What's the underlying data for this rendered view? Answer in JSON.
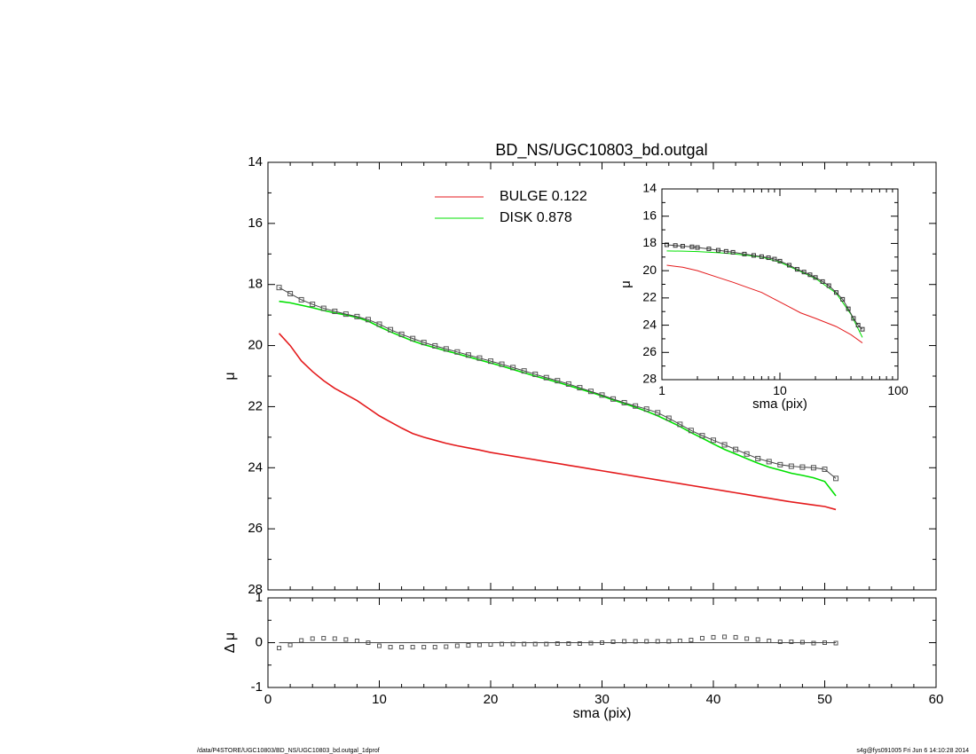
{
  "title": "BD_NS/UGC10803_bd.outgal",
  "legend": [
    {
      "label": "BULGE  0.122",
      "color": "#e41a1c"
    },
    {
      "label": "DISK  0.878",
      "color": "#00e000"
    }
  ],
  "footer": {
    "left": "/data/P4STORE/UGC10803/BD_NS/UGC10803_bd.outgal_1dprof",
    "right": "s4g@fys091005  Fri Jun  6 14:10:28 2014"
  },
  "chart_data": [
    {
      "id": "main",
      "type": "line",
      "xlabel": "",
      "ylabel": "μ",
      "xlim": [
        0,
        60
      ],
      "ylim": [
        28,
        14
      ],
      "yticks": [
        14,
        16,
        18,
        20,
        22,
        24,
        26,
        28
      ],
      "series": [
        {
          "name": "BULGE",
          "color": "#e41a1c",
          "x": [
            1,
            2,
            3,
            4,
            5,
            6,
            7,
            8,
            9,
            10,
            11,
            12,
            13,
            14,
            15,
            16,
            17,
            18,
            19,
            20,
            21,
            22,
            23,
            24,
            25,
            26,
            27,
            28,
            29,
            30,
            31,
            32,
            33,
            34,
            35,
            36,
            37,
            38,
            39,
            40,
            41,
            42,
            43,
            44,
            45,
            46,
            47,
            48,
            49,
            50,
            51
          ],
          "y": [
            19.6,
            20.0,
            20.5,
            20.85,
            21.15,
            21.4,
            21.6,
            21.8,
            22.05,
            22.3,
            22.5,
            22.7,
            22.88,
            23.0,
            23.1,
            23.2,
            23.28,
            23.35,
            23.42,
            23.5,
            23.56,
            23.62,
            23.68,
            23.74,
            23.8,
            23.86,
            23.92,
            23.98,
            24.04,
            24.1,
            24.16,
            24.22,
            24.28,
            24.34,
            24.4,
            24.46,
            24.52,
            24.58,
            24.64,
            24.7,
            24.76,
            24.82,
            24.88,
            24.94,
            25.0,
            25.06,
            25.12,
            25.17,
            25.22,
            25.27,
            25.37
          ]
        },
        {
          "name": "DISK",
          "color": "#00e000",
          "x": [
            1,
            2,
            3,
            4,
            5,
            6,
            7,
            8,
            9,
            10,
            11,
            12,
            13,
            14,
            15,
            16,
            17,
            18,
            19,
            20,
            21,
            22,
            23,
            24,
            25,
            26,
            27,
            28,
            29,
            30,
            31,
            32,
            33,
            34,
            35,
            36,
            37,
            38,
            39,
            40,
            41,
            42,
            43,
            44,
            45,
            46,
            47,
            48,
            49,
            50,
            51
          ],
          "y": [
            18.55,
            18.6,
            18.68,
            18.76,
            18.85,
            18.93,
            19.0,
            19.08,
            19.2,
            19.38,
            19.55,
            19.7,
            19.85,
            19.97,
            20.07,
            20.17,
            20.27,
            20.37,
            20.47,
            20.57,
            20.67,
            20.78,
            20.89,
            21.0,
            21.1,
            21.2,
            21.31,
            21.42,
            21.53,
            21.65,
            21.78,
            21.9,
            22.02,
            22.15,
            22.3,
            22.47,
            22.65,
            22.85,
            23.03,
            23.22,
            23.4,
            23.55,
            23.7,
            23.85,
            23.98,
            24.08,
            24.18,
            24.25,
            24.33,
            24.45,
            24.92
          ]
        },
        {
          "name": "",
          "color": "#555555",
          "marker": "square",
          "x": [
            1,
            2,
            3,
            4,
            5,
            6,
            7,
            8,
            9,
            10,
            11,
            12,
            13,
            14,
            15,
            16,
            17,
            18,
            19,
            20,
            21,
            22,
            23,
            24,
            25,
            26,
            27,
            28,
            29,
            30,
            31,
            32,
            33,
            34,
            35,
            36,
            37,
            38,
            39,
            40,
            41,
            42,
            43,
            44,
            45,
            46,
            47,
            48,
            49,
            50,
            51
          ],
          "y": [
            18.1,
            18.3,
            18.5,
            18.65,
            18.78,
            18.88,
            18.97,
            19.05,
            19.15,
            19.3,
            19.48,
            19.63,
            19.77,
            19.9,
            20.01,
            20.11,
            20.21,
            20.31,
            20.41,
            20.51,
            20.61,
            20.72,
            20.83,
            20.94,
            21.05,
            21.15,
            21.26,
            21.38,
            21.5,
            21.62,
            21.75,
            21.87,
            21.98,
            22.08,
            22.2,
            22.38,
            22.58,
            22.78,
            22.95,
            23.1,
            23.25,
            23.4,
            23.55,
            23.7,
            23.8,
            23.9,
            23.95,
            23.98,
            24.0,
            24.05,
            24.35
          ]
        }
      ]
    },
    {
      "id": "residual",
      "type": "scatter",
      "xlabel": "sma (pix)",
      "ylabel": "Δ μ",
      "xlim": [
        0,
        60
      ],
      "ylim": [
        -1,
        1
      ],
      "xticks": [
        0,
        10,
        20,
        30,
        40,
        50,
        60
      ],
      "yticks": [
        -1,
        0,
        1
      ],
      "series": [
        {
          "name": "",
          "color": "#555555",
          "marker": "square",
          "x": [
            1,
            2,
            3,
            4,
            5,
            6,
            7,
            8,
            9,
            10,
            11,
            12,
            13,
            14,
            15,
            16,
            17,
            18,
            19,
            20,
            21,
            22,
            23,
            24,
            25,
            26,
            27,
            28,
            29,
            30,
            31,
            32,
            33,
            34,
            35,
            36,
            37,
            38,
            39,
            40,
            41,
            42,
            43,
            44,
            45,
            46,
            47,
            48,
            49,
            50,
            51
          ],
          "y": [
            -0.12,
            -0.05,
            0.05,
            0.09,
            0.1,
            0.09,
            0.07,
            0.04,
            0.0,
            -0.07,
            -0.1,
            -0.1,
            -0.1,
            -0.1,
            -0.1,
            -0.09,
            -0.07,
            -0.06,
            -0.05,
            -0.04,
            -0.03,
            -0.03,
            -0.03,
            -0.03,
            -0.03,
            -0.02,
            -0.02,
            -0.02,
            -0.01,
            0.0,
            0.02,
            0.03,
            0.03,
            0.03,
            0.03,
            0.03,
            0.04,
            0.06,
            0.1,
            0.12,
            0.13,
            0.12,
            0.09,
            0.07,
            0.04,
            0.02,
            0.02,
            0.01,
            -0.01,
            0.0,
            -0.01
          ]
        }
      ]
    },
    {
      "id": "inset",
      "type": "line",
      "xlabel": "sma (pix)",
      "ylabel": "μ",
      "xscale": "log",
      "xlim": [
        1,
        100
      ],
      "ylim": [
        28,
        14
      ],
      "xticks": [
        1,
        10,
        100
      ],
      "yticks": [
        14,
        16,
        18,
        20,
        22,
        24,
        26,
        28
      ],
      "series": [
        {
          "name": "BULGE",
          "color": "#e41a1c",
          "x": [
            1.1,
            1.5,
            2,
            3,
            4,
            5,
            7,
            10,
            15,
            20,
            30,
            40,
            50
          ],
          "y": [
            19.6,
            19.75,
            20.0,
            20.5,
            20.85,
            21.15,
            21.6,
            22.3,
            23.1,
            23.5,
            24.1,
            24.7,
            25.3
          ]
        },
        {
          "name": "DISK",
          "color": "#00e000",
          "x": [
            1.1,
            1.5,
            2,
            3,
            4,
            5,
            7,
            10,
            15,
            20,
            30,
            40,
            50
          ],
          "y": [
            18.55,
            18.57,
            18.6,
            18.68,
            18.76,
            18.85,
            19.0,
            19.38,
            20.07,
            20.57,
            21.65,
            23.2,
            24.9
          ]
        },
        {
          "name": "",
          "color": "#333333",
          "marker": "square",
          "x": [
            1.1,
            1.3,
            1.5,
            1.8,
            2,
            2.5,
            3,
            3.5,
            4,
            5,
            6,
            7,
            8,
            9,
            10,
            12,
            14,
            16,
            18,
            20,
            23,
            26,
            30,
            34,
            38,
            42,
            46,
            50
          ],
          "y": [
            18.1,
            18.15,
            18.2,
            18.25,
            18.3,
            18.4,
            18.5,
            18.58,
            18.65,
            18.78,
            18.88,
            18.97,
            19.05,
            19.15,
            19.3,
            19.6,
            19.9,
            20.1,
            20.3,
            20.5,
            20.8,
            21.1,
            21.6,
            22.1,
            22.8,
            23.5,
            24.0,
            24.3
          ]
        }
      ]
    }
  ]
}
